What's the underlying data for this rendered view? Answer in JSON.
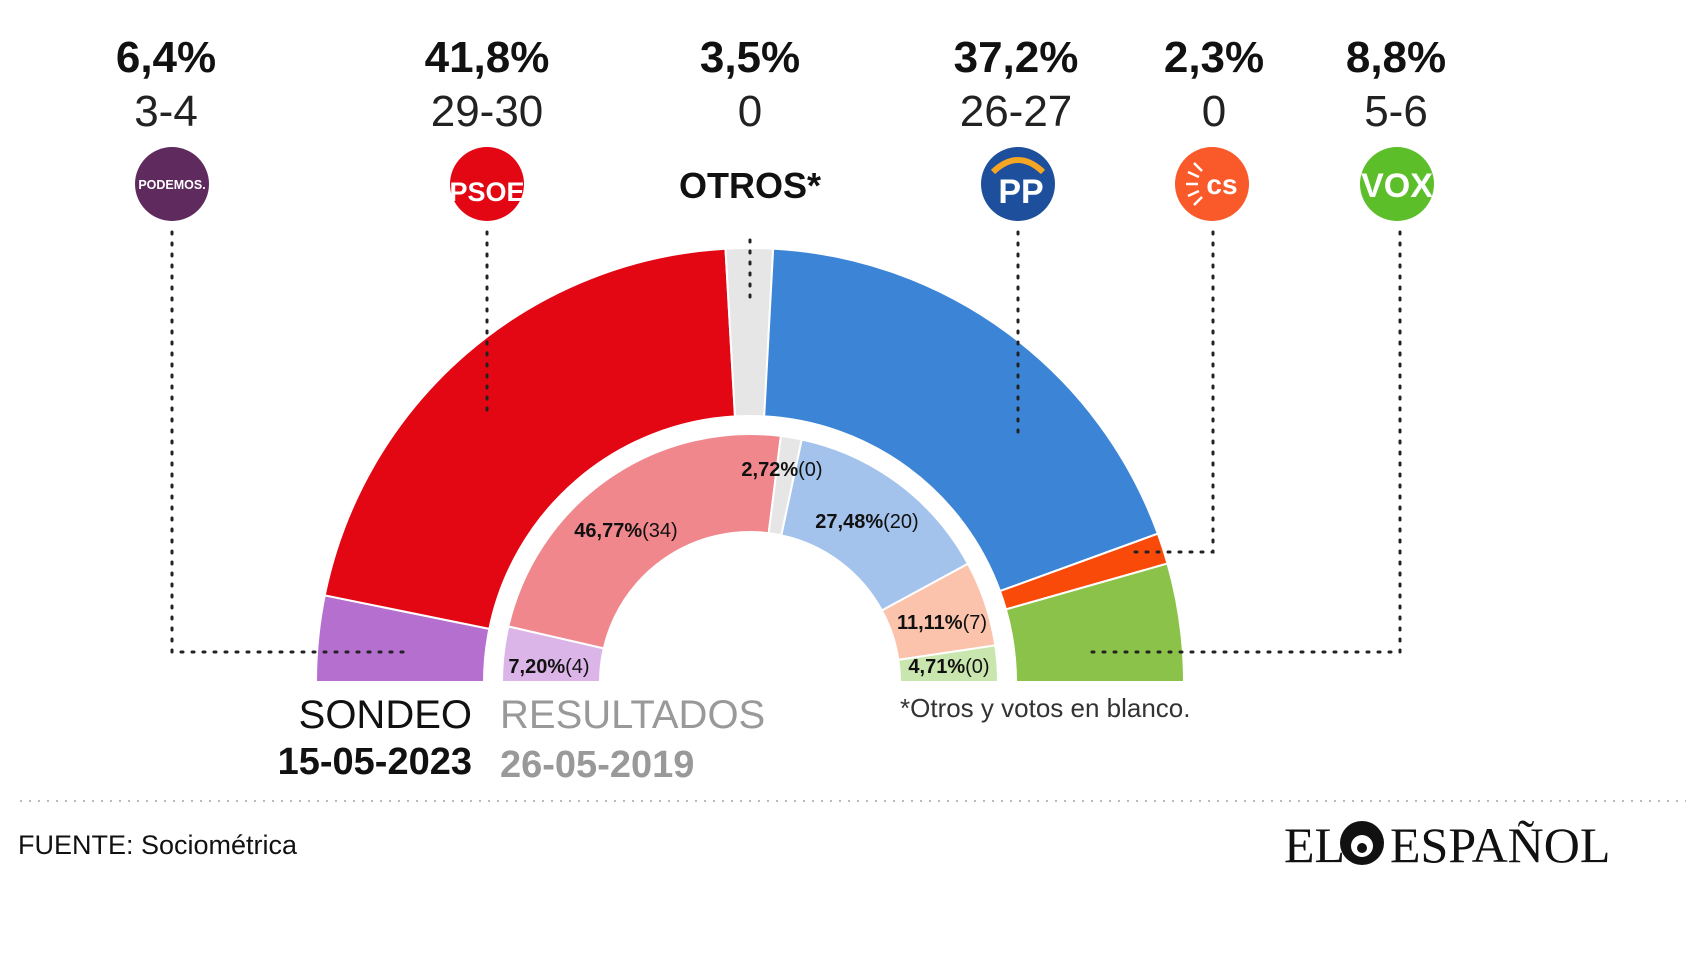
{
  "chart_data": {
    "type": "pie",
    "subtype": "double-semicircle (hemicycle)",
    "outer_ring": {
      "name": "SONDEO 15-05-2023",
      "slices": [
        {
          "party": "PODEMOS",
          "percent": 6.4,
          "percent_label": "6,4%",
          "seats_label": "3-4",
          "color": "#b56fce"
        },
        {
          "party": "PSOE",
          "percent": 41.8,
          "percent_label": "41,8%",
          "seats_label": "29-30",
          "color": "#e30613"
        },
        {
          "party": "OTROS*",
          "percent": 3.5,
          "percent_label": "3,5%",
          "seats_label": "0",
          "color": "#e6e6e6"
        },
        {
          "party": "PP",
          "percent": 37.2,
          "percent_label": "37,2%",
          "seats_label": "26-27",
          "color": "#3c85d6"
        },
        {
          "party": "Cs",
          "percent": 2.3,
          "percent_label": "2,3%",
          "seats_label": "0",
          "color": "#fa4a0a"
        },
        {
          "party": "VOX",
          "percent": 8.8,
          "percent_label": "8,8%",
          "seats_label": "5-6",
          "color": "#8bc34a"
        }
      ]
    },
    "inner_ring": {
      "name": "RESULTADOS 26-05-2019",
      "slices": [
        {
          "party": "PODEMOS",
          "percent": 7.2,
          "label_pct": "7,20%",
          "label_seats": "(4)",
          "color": "#dcb5e8"
        },
        {
          "party": "PSOE",
          "percent": 46.77,
          "label_pct": "46,77%",
          "label_seats": "(34)",
          "color": "#f0878c"
        },
        {
          "party": "OTROS*",
          "percent": 2.72,
          "label_pct": "2,72%",
          "label_seats": "(0)",
          "color": "#e6e6e6"
        },
        {
          "party": "PP",
          "percent": 27.48,
          "label_pct": "27,48%",
          "label_seats": "(20)",
          "color": "#a3c3ec"
        },
        {
          "party": "Cs",
          "percent": 11.11,
          "label_pct": "11,11%",
          "label_seats": "(7)",
          "color": "#fcc3ac"
        },
        {
          "party": "VOX",
          "percent": 4.71,
          "label_pct": "4,71%",
          "label_seats": "(0)",
          "color": "#c8e6ad"
        }
      ]
    }
  },
  "logos": {
    "podemos": {
      "text": "PODEMOS.",
      "color": "#5f2b5e"
    },
    "psoe": {
      "text": "PSOE",
      "color": "#e30613"
    },
    "otros": {
      "text": "OTROS*"
    },
    "pp": {
      "text": "PP",
      "color": "#1d4f9c"
    },
    "cs": {
      "text": "cs",
      "color": "#fa5a2a"
    },
    "vox": {
      "text": "VOX",
      "color": "#5cbf2a"
    }
  },
  "legend": {
    "poll_label": "SONDEO",
    "poll_date": "15-05-2023",
    "results_label": "RESULTADOS",
    "results_date": "26-05-2019"
  },
  "note": "*Otros y votos en blanco.",
  "source": "FUENTE: Sociométrica",
  "brand": {
    "left": "EL",
    "right": "ESPAÑOL"
  }
}
